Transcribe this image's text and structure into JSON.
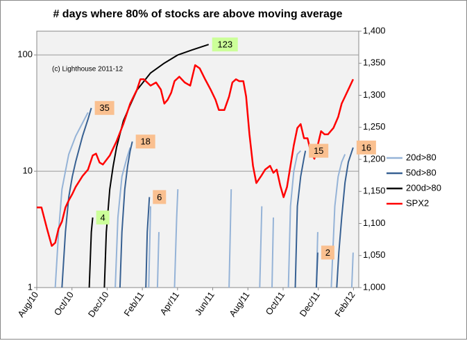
{
  "chart_data": {
    "type": "line",
    "title": "# days where 80% of stocks are above moving average",
    "xlim": [
      0,
      18.3
    ],
    "xticks": [
      {
        "value": 0,
        "label": "Aug/10"
      },
      {
        "value": 2,
        "label": "Oct/10"
      },
      {
        "value": 4,
        "label": "Dec/10"
      },
      {
        "value": 6,
        "label": "Feb/11"
      },
      {
        "value": 8,
        "label": "Apr/11"
      },
      {
        "value": 10,
        "label": "Jun/11"
      },
      {
        "value": 12,
        "label": "Aug/11"
      },
      {
        "value": 14,
        "label": "Oct/11"
      },
      {
        "value": 16,
        "label": "Dec/11"
      },
      {
        "value": 18,
        "label": "Feb/12"
      }
    ],
    "ylim": [
      1,
      160
    ],
    "yticks": [
      1,
      10,
      100
    ],
    "log_y": true,
    "y2lim": [
      1000,
      1400
    ],
    "y2ticks": [
      {
        "value": 1000,
        "label": "1,000"
      },
      {
        "value": 1050,
        "label": "1,050"
      },
      {
        "value": 1100,
        "label": "1,100"
      },
      {
        "value": 1150,
        "label": "1,150"
      },
      {
        "value": 1200,
        "label": "1,200"
      },
      {
        "value": 1250,
        "label": "1,250"
      },
      {
        "value": 1300,
        "label": "1,300"
      },
      {
        "value": 1350,
        "label": "1,350"
      },
      {
        "value": 1400,
        "label": "1,400"
      }
    ],
    "grid": true,
    "legend": "right",
    "series": [
      {
        "name": "20d>80",
        "color": "#95b3d7",
        "x": [
          1.05,
          1.24,
          1.43,
          1.63,
          1.82,
          2.21,
          2.6,
          2.91,
          null,
          4.46,
          4.61,
          4.84,
          5.12,
          5.31,
          null,
          6.36,
          6.47,
          null,
          6.86,
          6.94,
          null,
          7.83,
          7.95,
          8.02,
          null,
          10.93,
          11.05,
          null,
          12.67,
          12.79,
          null,
          13.37,
          13.45,
          null,
          14.3,
          14.42,
          14.61,
          14.81,
          15.0,
          null,
          15.89,
          15.97,
          null,
          16.74,
          16.94,
          17.13,
          17.33,
          17.52,
          null,
          17.9,
          17.98
        ],
        "values": [
          1,
          3,
          7,
          10,
          14,
          20,
          26,
          32,
          null,
          1,
          4,
          9,
          13,
          16,
          null,
          1,
          5,
          null,
          1,
          3,
          null,
          1,
          4,
          7,
          null,
          1,
          7,
          null,
          1,
          5,
          null,
          1,
          4,
          null,
          1,
          5,
          10,
          14,
          15,
          null,
          1,
          3,
          null,
          1,
          5,
          9,
          12,
          14,
          null,
          1,
          2
        ]
      },
      {
        "name": "50d>80",
        "color": "#376092",
        "x": [
          1.43,
          1.63,
          1.82,
          2.02,
          2.21,
          2.6,
          2.91,
          3.1,
          null,
          4.73,
          4.84,
          5.0,
          5.16,
          5.31,
          5.43,
          null,
          6.2,
          6.28,
          6.4,
          null,
          14.69,
          14.81,
          15.0,
          15.19,
          15.27,
          null,
          15.89,
          15.97,
          null,
          17.05,
          17.17,
          17.33,
          17.52,
          17.71,
          17.98
        ],
        "values": [
          1,
          3,
          6,
          9,
          12,
          20,
          28,
          35,
          null,
          1,
          3,
          7,
          11,
          15,
          18,
          null,
          1,
          3,
          6,
          null,
          1,
          5,
          9,
          13,
          15,
          null,
          1,
          2,
          null,
          1,
          2,
          4,
          8,
          12,
          16
        ]
      },
      {
        "name": "200d>80",
        "color": "#000000",
        "x": [
          2.98,
          3.1,
          3.18,
          null,
          3.84,
          3.95,
          4.15,
          4.34,
          4.53,
          4.92,
          5.31,
          5.7,
          6.47,
          7.25,
          8.02,
          8.8,
          9.77
        ],
        "values": [
          1,
          3,
          4,
          null,
          1,
          3,
          7,
          11,
          16,
          27,
          37,
          50,
          70,
          85,
          100,
          110,
          123
        ]
      },
      {
        "name": "SPX2",
        "color": "#ff0000",
        "axis": "y2",
        "x": [
          0,
          0.27,
          0.58,
          0.85,
          1.05,
          1.24,
          1.43,
          1.63,
          1.82,
          2.02,
          2.21,
          2.6,
          2.91,
          3.18,
          3.37,
          3.57,
          3.76,
          4.15,
          4.53,
          4.92,
          5.31,
          5.7,
          5.89,
          6.09,
          6.28,
          6.47,
          6.78,
          7.05,
          7.25,
          7.44,
          7.64,
          7.83,
          8.1,
          8.41,
          8.72,
          9.0,
          9.26,
          9.57,
          9.88,
          10.16,
          10.35,
          10.66,
          10.93,
          11.12,
          11.32,
          11.51,
          11.74,
          11.9,
          12.09,
          12.29,
          12.48,
          12.75,
          12.98,
          13.26,
          13.45,
          13.64,
          13.84,
          14.03,
          14.22,
          14.42,
          14.61,
          14.81,
          15.0,
          15.19,
          15.39,
          15.58,
          15.78,
          15.97,
          16.16,
          16.36,
          16.55,
          16.86,
          17.13,
          17.33,
          17.52,
          17.71,
          17.98
        ],
        "values": [
          1125,
          1125,
          1092,
          1065,
          1070,
          1092,
          1103,
          1125,
          1136,
          1146,
          1157,
          1174,
          1184,
          1206,
          1209,
          1195,
          1192,
          1206,
          1228,
          1255,
          1287,
          1309,
          1325,
          1325,
          1320,
          1315,
          1320,
          1309,
          1287,
          1293,
          1304,
          1322,
          1329,
          1320,
          1315,
          1347,
          1342,
          1325,
          1309,
          1293,
          1277,
          1277,
          1298,
          1320,
          1325,
          1322,
          1322,
          1298,
          1239,
          1190,
          1163,
          1174,
          1184,
          1190,
          1179,
          1184,
          1159,
          1141,
          1157,
          1190,
          1222,
          1249,
          1255,
          1233,
          1233,
          1211,
          1201,
          1222,
          1244,
          1239,
          1239,
          1249,
          1266,
          1287,
          1298,
          1309,
          1325
        ]
      }
    ],
    "annotations": [
      {
        "text": "35",
        "x": 3.1,
        "y": 35,
        "color": "#fac090"
      },
      {
        "text": "4",
        "x": 3.18,
        "y": 4,
        "color": "#ccff99"
      },
      {
        "text": "18",
        "x": 5.43,
        "y": 18,
        "color": "#fac090"
      },
      {
        "text": "6",
        "x": 6.4,
        "y": 6,
        "color": "#fac090"
      },
      {
        "text": "123",
        "x": 9.77,
        "y": 123,
        "color": "#ccff99"
      },
      {
        "text": "15",
        "x": 15.27,
        "y": 15,
        "color": "#fac090"
      },
      {
        "text": "2",
        "x": 15.97,
        "y": 2,
        "color": "#fac090"
      },
      {
        "text": "16",
        "x": 17.98,
        "y": 16,
        "color": "#fac090"
      }
    ],
    "note": "(c) Lighthouse 2011-12"
  }
}
